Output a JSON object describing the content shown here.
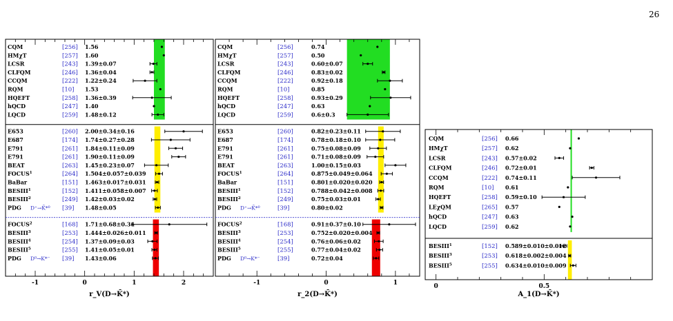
{
  "page_number": "26",
  "chart_data": [
    {
      "type": "scatter",
      "panel": "rV",
      "xlabel": "r_V(D→K̄*)",
      "xlim": [
        -1.6,
        2.6
      ],
      "xticks": [
        -1,
        0,
        1,
        2
      ],
      "bands": [
        {
          "color": "#22dd22",
          "from": 1.4,
          "to": 1.62,
          "rows": "theory"
        },
        {
          "color": "#ffee00",
          "from": 1.41,
          "to": 1.53,
          "rows": "charged"
        },
        {
          "color": "#ee0000",
          "from": 1.38,
          "to": 1.5,
          "rows": "neutral"
        }
      ],
      "sections": [
        {
          "name": "theory",
          "rows": [
            {
              "label": "CQM",
              "ref": "[256]",
              "text": "1.56",
              "value": 1.56
            },
            {
              "label": "HMχT",
              "ref": "[257]",
              "text": "1.60",
              "value": 1.6
            },
            {
              "label": "LCSR",
              "ref": "[243]",
              "text": "1.39±0.07",
              "value": 1.39,
              "err": 0.07
            },
            {
              "label": "CLFQM",
              "ref": "[246]",
              "text": "1.36±0.04",
              "value": 1.36,
              "err": 0.04
            },
            {
              "label": "CCQM",
              "ref": "[222]",
              "text": "1.22±0.24",
              "value": 1.22,
              "err": 0.24
            },
            {
              "label": "RQM",
              "ref": "[10]",
              "text": "1.53",
              "value": 1.53
            },
            {
              "label": "HQEFT",
              "ref": "[258]",
              "text": "1.36±0.39",
              "value": 1.36,
              "err": 0.39
            },
            {
              "label": "hQCD",
              "ref": "[247]",
              "text": "1.40",
              "value": 1.4
            },
            {
              "label": "LQCD",
              "ref": "[259]",
              "text": "1.48±0.12",
              "value": 1.48,
              "err": 0.12
            }
          ]
        },
        {
          "name": "charged",
          "rows": [
            {
              "label": "E653",
              "ref": "[260]",
              "text": "2.00±0.34±0.16",
              "value": 2.0,
              "err": 0.38
            },
            {
              "label": "E687",
              "ref": "[174]",
              "text": "1.74±0.27±0.28",
              "value": 1.74,
              "err": 0.39
            },
            {
              "label": "E791",
              "ref": "[261]",
              "text": "1.84±0.11±0.09",
              "value": 1.84,
              "err": 0.14
            },
            {
              "label": "E791",
              "ref": "[261]",
              "text": "1.90±0.11±0.09",
              "value": 1.9,
              "err": 0.14
            },
            {
              "label": "BEAT",
              "ref": "[263]",
              "text": "1.45±0.23±0.07",
              "value": 1.45,
              "err": 0.24
            },
            {
              "label": "FOCUS",
              "sup": "1",
              "ref": "[264]",
              "text": "1.504±0.057±0.039",
              "value": 1.504,
              "err": 0.069
            },
            {
              "label": "BaBar",
              "ref": "[151]",
              "text": "1.463±0.017±0.031",
              "value": 1.463,
              "err": 0.035
            },
            {
              "label": "BESIII",
              "sup": "1",
              "ref": "[152]",
              "text": "1.411±0.058±0.007",
              "value": 1.411,
              "err": 0.058
            },
            {
              "label": "BESIII",
              "sup": "2",
              "ref": "[249]",
              "text": "1.42±0.03±0.02",
              "value": 1.42,
              "err": 0.036
            },
            {
              "label": "PDG",
              "mode": "D⁺→K̄*⁰",
              "ref": "[39]",
              "text": "1.48±0.05",
              "value": 1.48,
              "err": 0.05
            }
          ]
        },
        {
          "name": "neutral",
          "rows": [
            {
              "label": "FOCUS",
              "sup": "2",
              "ref": "[168]",
              "text": "1.71±0.68±0.34",
              "value": 1.71,
              "err": 0.76
            },
            {
              "label": "BESIII",
              "sup": "3",
              "ref": "[253]",
              "text": "1.444±0.026±0.011",
              "value": 1.444,
              "err": 0.028
            },
            {
              "label": "BESIII",
              "sup": "4",
              "ref": "[254]",
              "text": "1.37±0.09±0.03",
              "value": 1.37,
              "err": 0.095
            },
            {
              "label": "BESIII",
              "sup": "5",
              "ref": "[255]",
              "text": "1.41±0.05±0.01",
              "value": 1.41,
              "err": 0.051
            },
            {
              "label": "PDG",
              "mode": "D⁰→K*⁻",
              "ref": "[39]",
              "text": "1.43±0.06",
              "value": 1.43,
              "err": 0.06
            }
          ]
        }
      ]
    },
    {
      "type": "scatter",
      "panel": "r2",
      "xlabel": "r_2(D→K̄*)",
      "xlim": [
        -1.6,
        1.35
      ],
      "xticks": [
        -1,
        0,
        1
      ],
      "bands": [
        {
          "color": "#22dd22",
          "from": 0.3,
          "to": 0.92,
          "rows": "theory"
        },
        {
          "color": "#ffee00",
          "from": 0.75,
          "to": 0.83,
          "rows": "charged"
        },
        {
          "color": "#ee0000",
          "from": 0.66,
          "to": 0.78,
          "rows": "neutral"
        }
      ],
      "sections": [
        {
          "name": "theory",
          "rows": [
            {
              "label": "CQM",
              "ref": "[256]",
              "text": "0.74",
              "value": 0.74
            },
            {
              "label": "HMχT",
              "ref": "[257]",
              "text": "0.50",
              "value": 0.5
            },
            {
              "label": "LCSR",
              "ref": "[243]",
              "text": "0.60±0.07",
              "value": 0.6,
              "err": 0.07
            },
            {
              "label": "CLFQM",
              "ref": "[246]",
              "text": "0.83±0.02",
              "value": 0.83,
              "err": 0.02
            },
            {
              "label": "CCQM",
              "ref": "[222]",
              "text": "0.92±0.18",
              "value": 0.92,
              "err": 0.18
            },
            {
              "label": "RQM",
              "ref": "[10]",
              "text": "0.85",
              "value": 0.85
            },
            {
              "label": "HQEFT",
              "ref": "[258]",
              "text": "0.93±0.29",
              "value": 0.93,
              "err": 0.29
            },
            {
              "label": "hQCD",
              "ref": "[247]",
              "text": "0.63",
              "value": 0.63
            },
            {
              "label": "LQCD",
              "ref": "[259]",
              "text": "0.6±0.3",
              "value": 0.6,
              "err": 0.3
            }
          ]
        },
        {
          "name": "charged",
          "rows": [
            {
              "label": "E653",
              "ref": "[260]",
              "text": "0.82±0.23±0.11",
              "value": 0.82,
              "err": 0.25
            },
            {
              "label": "E687",
              "ref": "[174]",
              "text": "0.78±0.18±0.10",
              "value": 0.78,
              "err": 0.21
            },
            {
              "label": "E791",
              "ref": "[261]",
              "text": "0.75±0.08±0.09",
              "value": 0.75,
              "err": 0.12
            },
            {
              "label": "E791",
              "ref": "[261]",
              "text": "0.71±0.08±0.09",
              "value": 0.71,
              "err": 0.12
            },
            {
              "label": "BEAT",
              "ref": "[263]",
              "text": "1.00±0.15±0.03",
              "value": 1.0,
              "err": 0.15
            },
            {
              "label": "FOCUS",
              "sup": "1",
              "ref": "[264]",
              "text": "0.875±0.049±0.064",
              "value": 0.875,
              "err": 0.081
            },
            {
              "label": "BaBar",
              "ref": "[151]",
              "text": "0.801±0.020±0.020",
              "value": 0.801,
              "err": 0.028
            },
            {
              "label": "BESIII",
              "sup": "1",
              "ref": "[152]",
              "text": "0.788±0.042±0.008",
              "value": 0.788,
              "err": 0.043
            },
            {
              "label": "BESIII",
              "sup": "2",
              "ref": "[249]",
              "text": "0.75±0.03±0.01",
              "value": 0.75,
              "err": 0.032
            },
            {
              "label": "PDG",
              "mode": "D⁺→K̄*⁰",
              "ref": "[39]",
              "text": "0.80±0.02",
              "value": 0.8,
              "err": 0.02
            }
          ]
        },
        {
          "name": "neutral",
          "rows": [
            {
              "label": "FOCUS",
              "sup": "2",
              "ref": "[168]",
              "text": "0.91±0.37±0.10",
              "value": 0.91,
              "err": 0.38
            },
            {
              "label": "BESIII",
              "sup": "3",
              "ref": "[253]",
              "text": "0.752±0.020±0.004",
              "value": 0.752,
              "err": 0.02
            },
            {
              "label": "BESIII",
              "sup": "4",
              "ref": "[254]",
              "text": "0.76±0.06±0.02",
              "value": 0.76,
              "err": 0.063
            },
            {
              "label": "BESIII",
              "sup": "5",
              "ref": "[255]",
              "text": "0.77±0.04±0.02",
              "value": 0.77,
              "err": 0.045
            },
            {
              "label": "PDG",
              "mode": "D⁰→K*⁻",
              "ref": "[39]",
              "text": "0.72±0.04",
              "value": 0.72,
              "err": 0.04
            }
          ]
        }
      ]
    },
    {
      "type": "scatter",
      "panel": "A1",
      "xlabel": "A_1(D→K̄*)",
      "xlim": [
        -0.05,
        1.0
      ],
      "xticks": [
        0,
        0.5
      ],
      "bands": [
        {
          "color": "#22dd22",
          "from": 0.622,
          "to": 0.628,
          "rows": "theory"
        },
        {
          "color": "#ffee00",
          "from": 0.61,
          "to": 0.628,
          "rows": "experiment"
        }
      ],
      "sections": [
        {
          "name": "theory",
          "rows": [
            {
              "label": "CQM",
              "ref": "[256]",
              "text": "0.66",
              "value": 0.66
            },
            {
              "label": "HMχT",
              "ref": "[257]",
              "text": "0.62",
              "value": 0.62
            },
            {
              "label": "LCSR",
              "ref": "[243]",
              "text": "0.57±0.02",
              "value": 0.57,
              "err": 0.02
            },
            {
              "label": "CLFQM",
              "ref": "[246]",
              "text": "0.72±0.01",
              "value": 0.72,
              "err": 0.01
            },
            {
              "label": "CCQM",
              "ref": "[222]",
              "text": "0.74±0.11",
              "value": 0.74,
              "err": 0.11
            },
            {
              "label": "RQM",
              "ref": "[10]",
              "text": "0.61",
              "value": 0.61
            },
            {
              "label": "HQEFT",
              "ref": "[258]",
              "text": "0.59±0.10",
              "value": 0.59,
              "err": 0.1
            },
            {
              "label": "LEχQM",
              "ref": "[265]",
              "text": "0.57",
              "value": 0.57
            },
            {
              "label": "hQCD",
              "ref": "[247]",
              "text": "0.63",
              "value": 0.63
            },
            {
              "label": "LQCD",
              "ref": "[259]",
              "text": "0.62",
              "value": 0.62
            }
          ]
        },
        {
          "name": "experiment",
          "rows": [
            {
              "label": "BESIII",
              "sup": "1",
              "ref": "[152]",
              "text": "0.589±0.010±0.012",
              "value": 0.589,
              "err": 0.016
            },
            {
              "label": "BESIII",
              "sup": "3",
              "ref": "[253]",
              "text": "0.618±0.002±0.004",
              "value": 0.618,
              "err": 0.005
            },
            {
              "label": "BESIII",
              "sup": "5",
              "ref": "[255]",
              "text": "0.634±0.010±0.009",
              "value": 0.634,
              "err": 0.013
            }
          ]
        }
      ]
    }
  ]
}
